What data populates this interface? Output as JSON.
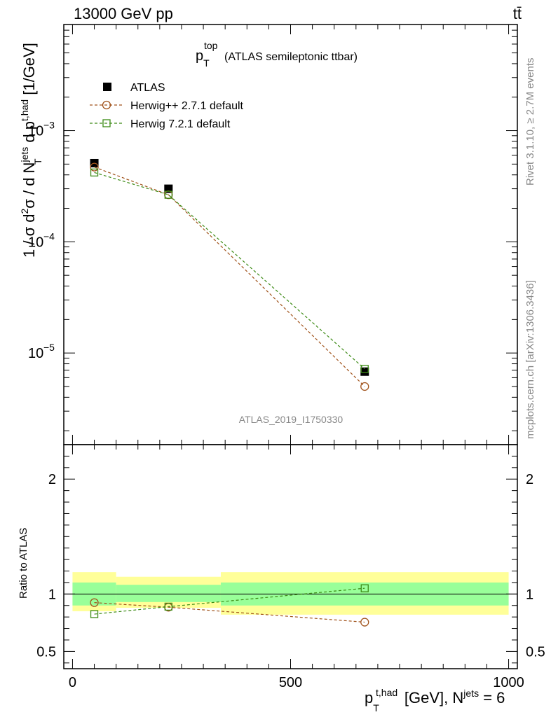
{
  "header": {
    "left": "13000 GeV pp",
    "right": "tt̄"
  },
  "plot_title": {
    "main": "p",
    "sup": "top",
    "sub": "T",
    "rest": "(ATLAS semileptonic ttbar)"
  },
  "side_labels": {
    "right_top": "Rivet 3.1.10, ≥ 2.7M events",
    "right_bottom": "mcplots.cern.ch [arXiv:1306.3436]"
  },
  "watermark": "ATLAS_2019_I1750330",
  "y_axis_label": {
    "part1": "1 / σ d",
    "sup1": "2",
    "part2": "σ / d N",
    "sup2": "jets",
    "part3": " d p",
    "sup3": "t,had",
    "sub3": "T",
    "unit": "[1/GeV]"
  },
  "ratio_label": "Ratio to ATLAS",
  "x_axis_label": {
    "p": "p",
    "sup": "t,had",
    "sub": "T",
    "mid": " [GeV], N",
    "sup2": "jets",
    "tail": " = 6"
  },
  "colors": {
    "data": "#000000",
    "herwigpp": "#a0521a",
    "herwig7": "#3d8b16",
    "band_inner": "#99ff99",
    "band_outer": "#ffff99"
  },
  "chart_data": [
    {
      "type": "scatter",
      "panel": "main",
      "log_y": true,
      "xlim": [
        -20,
        1020
      ],
      "ylim": [
        1.5e-06,
        0.009
      ],
      "x_ticks": [
        0,
        500,
        1000
      ],
      "y_ticks": [
        {
          "value": 0.001,
          "base": "10",
          "exp": "−3"
        },
        {
          "value": 0.0001,
          "base": "10",
          "exp": "−4"
        },
        {
          "value": 1e-05,
          "base": "10",
          "exp": "−5"
        }
      ],
      "legend_position": "top-left",
      "series": [
        {
          "name": "ATLAS",
          "marker": "filled-square",
          "x": [
            50,
            220,
            670
          ],
          "y": [
            0.00051,
            0.0003,
            6.8e-06
          ]
        },
        {
          "name": "Herwig++ 2.7.1 default",
          "marker": "open-circle",
          "x": [
            50,
            220,
            670
          ],
          "y": [
            0.00047,
            0.000265,
            5e-06
          ]
        },
        {
          "name": "Herwig 7.2.1 default",
          "marker": "open-square",
          "x": [
            50,
            220,
            670
          ],
          "y": [
            0.00042,
            0.000265,
            7.2e-06
          ]
        }
      ]
    },
    {
      "type": "scatter",
      "panel": "ratio",
      "xlim": [
        -20,
        1020
      ],
      "ylim": [
        0.35,
        2.3
      ],
      "y_ticks": [
        {
          "value": 0.5,
          "label": "0.5"
        },
        {
          "value": 1,
          "label": "1"
        },
        {
          "value": 2,
          "label": "2"
        }
      ],
      "bands": [
        {
          "x_low": 0,
          "x_high": 100,
          "inner": [
            0.9,
            1.1
          ],
          "outer": [
            0.85,
            1.19
          ]
        },
        {
          "x_low": 100,
          "x_high": 340,
          "inner": [
            0.93,
            1.08
          ],
          "outer": [
            0.88,
            1.15
          ]
        },
        {
          "x_low": 340,
          "x_high": 1000,
          "inner": [
            0.9,
            1.1
          ],
          "outer": [
            0.82,
            1.19
          ]
        }
      ],
      "series": [
        {
          "name": "Herwig++ 2.7.1 default",
          "marker": "open-circle",
          "x": [
            50,
            220,
            670
          ],
          "y": [
            0.925,
            0.885,
            0.755
          ]
        },
        {
          "name": "Herwig 7.2.1 default",
          "marker": "open-square",
          "x": [
            50,
            220,
            670
          ],
          "y": [
            0.825,
            0.89,
            1.05
          ]
        }
      ]
    }
  ]
}
